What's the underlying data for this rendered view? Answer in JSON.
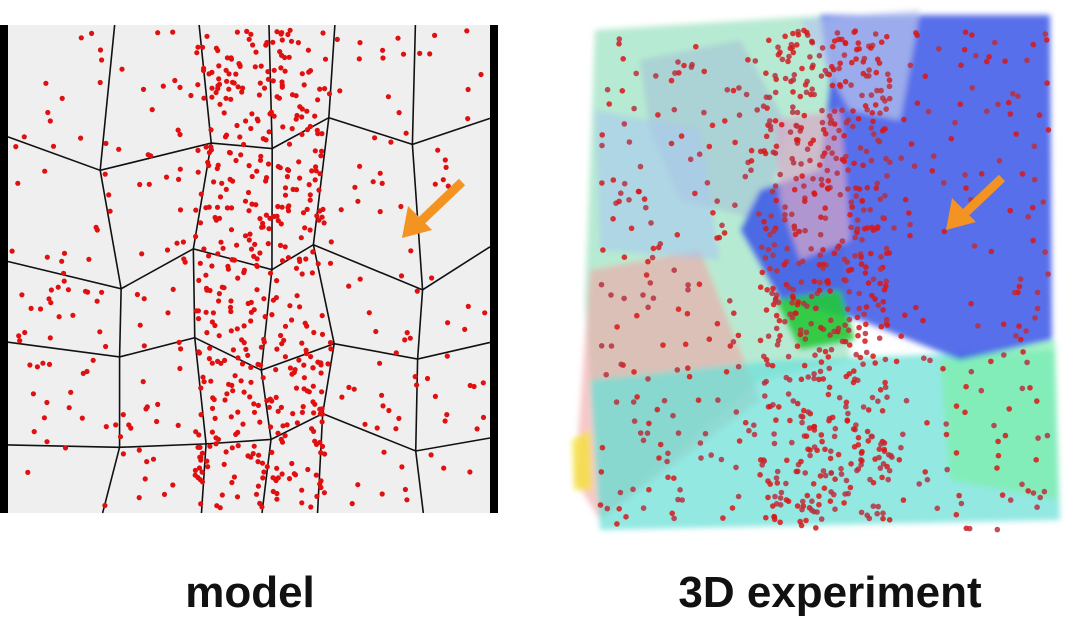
{
  "panels": [
    {
      "label": "model"
    },
    {
      "label": "3D experiment"
    }
  ]
}
